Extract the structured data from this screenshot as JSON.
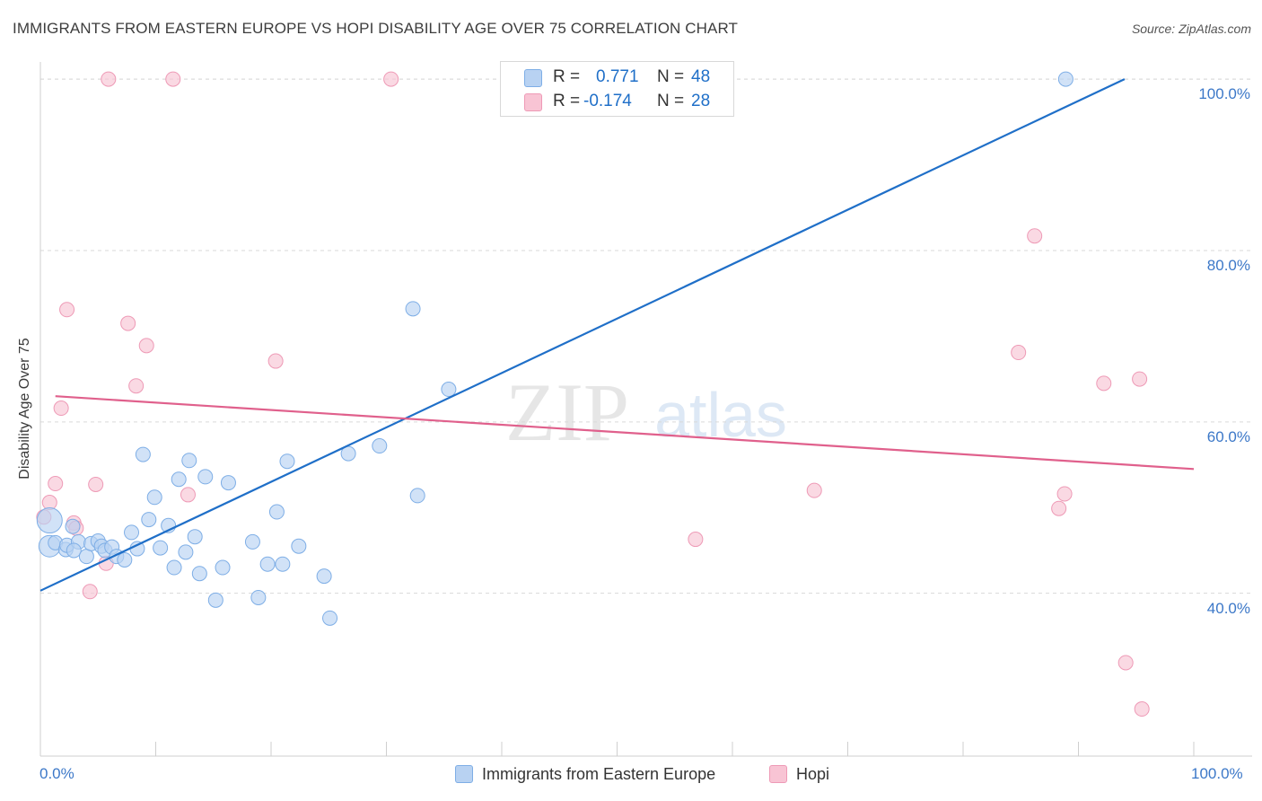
{
  "title": "IMMIGRANTS FROM EASTERN EUROPE VS HOPI DISABILITY AGE OVER 75 CORRELATION CHART",
  "source": "Source: ZipAtlas.com",
  "watermark": {
    "zip": "ZIP",
    "atlas": "atlas"
  },
  "colors": {
    "blue": "#1f6fc8",
    "blue_fill": "#b8d2f2",
    "pink": "#e0608c",
    "pink_fill": "#f8c4d4",
    "grid": "#d9d9d9",
    "axis_label": "#3c78c8"
  },
  "legend": {
    "rows": [
      {
        "r_label": "R =",
        "r_value": "0.771",
        "n_label": "N =",
        "n_value": "48"
      },
      {
        "r_label": "R =",
        "r_value": "-0.174",
        "n_label": "N =",
        "n_value": "28"
      }
    ]
  },
  "bottom_legend": [
    {
      "label": "Immigrants from Eastern Europe"
    },
    {
      "label": "Hopi"
    }
  ],
  "chart_data": {
    "type": "scatter",
    "title": "IMMIGRANTS FROM EASTERN EUROPE VS HOPI DISABILITY AGE OVER 75 CORRELATION CHART",
    "xlabel": "",
    "ylabel": "Disability Age Over 75",
    "xlim": [
      0,
      100
    ],
    "ylim": [
      21,
      102
    ],
    "x_tick_labels": [
      "0.0%",
      "100.0%"
    ],
    "y_ticks": [
      {
        "value": 40,
        "label": "40.0%"
      },
      {
        "value": 60,
        "label": "60.0%"
      },
      {
        "value": 80,
        "label": "80.0%"
      },
      {
        "value": 100,
        "label": "100.0%"
      }
    ],
    "grid": true,
    "series": [
      {
        "name": "Immigrants from Eastern Europe",
        "R": 0.771,
        "N": 48,
        "trend": {
          "x": [
            0,
            94
          ],
          "y": [
            40.3,
            100
          ]
        },
        "points": [
          {
            "x": 0.8,
            "y": 48.5,
            "s": 14
          },
          {
            "x": 0.8,
            "y": 45.5,
            "s": 12
          },
          {
            "x": 1.3,
            "y": 45.9,
            "s": 8
          },
          {
            "x": 2.2,
            "y": 45.1,
            "s": 8
          },
          {
            "x": 2.3,
            "y": 45.6,
            "s": 8
          },
          {
            "x": 2.8,
            "y": 47.8,
            "s": 8
          },
          {
            "x": 3.3,
            "y": 46.0,
            "s": 8
          },
          {
            "x": 2.9,
            "y": 45.0,
            "s": 8
          },
          {
            "x": 4.0,
            "y": 44.3,
            "s": 8
          },
          {
            "x": 4.4,
            "y": 45.8,
            "s": 8
          },
          {
            "x": 5.0,
            "y": 46.1,
            "s": 8
          },
          {
            "x": 5.3,
            "y": 45.5,
            "s": 8
          },
          {
            "x": 5.6,
            "y": 45.0,
            "s": 8
          },
          {
            "x": 6.2,
            "y": 45.4,
            "s": 8
          },
          {
            "x": 6.6,
            "y": 44.3,
            "s": 8
          },
          {
            "x": 7.3,
            "y": 43.9,
            "s": 8
          },
          {
            "x": 7.9,
            "y": 47.1,
            "s": 8
          },
          {
            "x": 8.4,
            "y": 45.2,
            "s": 8
          },
          {
            "x": 8.9,
            "y": 56.2,
            "s": 8
          },
          {
            "x": 9.4,
            "y": 48.6,
            "s": 8
          },
          {
            "x": 9.9,
            "y": 51.2,
            "s": 8
          },
          {
            "x": 10.4,
            "y": 45.3,
            "s": 8
          },
          {
            "x": 11.1,
            "y": 47.9,
            "s": 8
          },
          {
            "x": 11.6,
            "y": 43.0,
            "s": 8
          },
          {
            "x": 12.0,
            "y": 53.3,
            "s": 8
          },
          {
            "x": 12.6,
            "y": 44.8,
            "s": 8
          },
          {
            "x": 12.9,
            "y": 55.5,
            "s": 8
          },
          {
            "x": 13.4,
            "y": 46.6,
            "s": 8
          },
          {
            "x": 13.8,
            "y": 42.3,
            "s": 8
          },
          {
            "x": 14.3,
            "y": 53.6,
            "s": 8
          },
          {
            "x": 15.2,
            "y": 39.2,
            "s": 8
          },
          {
            "x": 15.8,
            "y": 43.0,
            "s": 8
          },
          {
            "x": 16.3,
            "y": 52.9,
            "s": 8
          },
          {
            "x": 18.4,
            "y": 46.0,
            "s": 8
          },
          {
            "x": 18.9,
            "y": 39.5,
            "s": 8
          },
          {
            "x": 19.7,
            "y": 43.4,
            "s": 8
          },
          {
            "x": 20.5,
            "y": 49.5,
            "s": 8
          },
          {
            "x": 21.0,
            "y": 43.4,
            "s": 8
          },
          {
            "x": 21.4,
            "y": 55.4,
            "s": 8
          },
          {
            "x": 22.4,
            "y": 45.5,
            "s": 8
          },
          {
            "x": 24.6,
            "y": 42.0,
            "s": 8
          },
          {
            "x": 25.1,
            "y": 37.1,
            "s": 8
          },
          {
            "x": 26.7,
            "y": 56.3,
            "s": 8
          },
          {
            "x": 29.4,
            "y": 57.2,
            "s": 8
          },
          {
            "x": 32.3,
            "y": 73.2,
            "s": 8
          },
          {
            "x": 32.7,
            "y": 51.4,
            "s": 8
          },
          {
            "x": 35.4,
            "y": 63.8,
            "s": 8
          },
          {
            "x": 88.9,
            "y": 100.0,
            "s": 8
          }
        ]
      },
      {
        "name": "Hopi",
        "R": -0.174,
        "N": 28,
        "trend": {
          "x": [
            1.3,
            100
          ],
          "y": [
            63.0,
            54.5
          ]
        },
        "points": [
          {
            "x": 0.3,
            "y": 48.9,
            "s": 8
          },
          {
            "x": 0.8,
            "y": 50.6,
            "s": 8
          },
          {
            "x": 1.3,
            "y": 52.8,
            "s": 8
          },
          {
            "x": 1.8,
            "y": 61.6,
            "s": 8
          },
          {
            "x": 2.3,
            "y": 73.1,
            "s": 8
          },
          {
            "x": 2.9,
            "y": 48.2,
            "s": 8
          },
          {
            "x": 3.1,
            "y": 47.6,
            "s": 8
          },
          {
            "x": 4.3,
            "y": 40.2,
            "s": 8
          },
          {
            "x": 4.8,
            "y": 52.7,
            "s": 8
          },
          {
            "x": 5.7,
            "y": 43.5,
            "s": 8
          },
          {
            "x": 5.9,
            "y": 100.0,
            "s": 8
          },
          {
            "x": 7.6,
            "y": 71.5,
            "s": 8
          },
          {
            "x": 8.3,
            "y": 64.2,
            "s": 8
          },
          {
            "x": 9.2,
            "y": 68.9,
            "s": 8
          },
          {
            "x": 11.5,
            "y": 100.0,
            "s": 8
          },
          {
            "x": 12.8,
            "y": 51.5,
            "s": 8
          },
          {
            "x": 20.4,
            "y": 67.1,
            "s": 8
          },
          {
            "x": 30.4,
            "y": 100.0,
            "s": 8
          },
          {
            "x": 56.8,
            "y": 46.3,
            "s": 8
          },
          {
            "x": 67.1,
            "y": 52.0,
            "s": 8
          },
          {
            "x": 84.8,
            "y": 68.1,
            "s": 8
          },
          {
            "x": 86.2,
            "y": 81.7,
            "s": 8
          },
          {
            "x": 88.3,
            "y": 49.9,
            "s": 8
          },
          {
            "x": 88.8,
            "y": 51.6,
            "s": 8
          },
          {
            "x": 92.2,
            "y": 64.5,
            "s": 8
          },
          {
            "x": 94.1,
            "y": 31.9,
            "s": 8
          },
          {
            "x": 95.3,
            "y": 65.0,
            "s": 8
          },
          {
            "x": 95.5,
            "y": 26.5,
            "s": 8
          }
        ]
      }
    ]
  }
}
